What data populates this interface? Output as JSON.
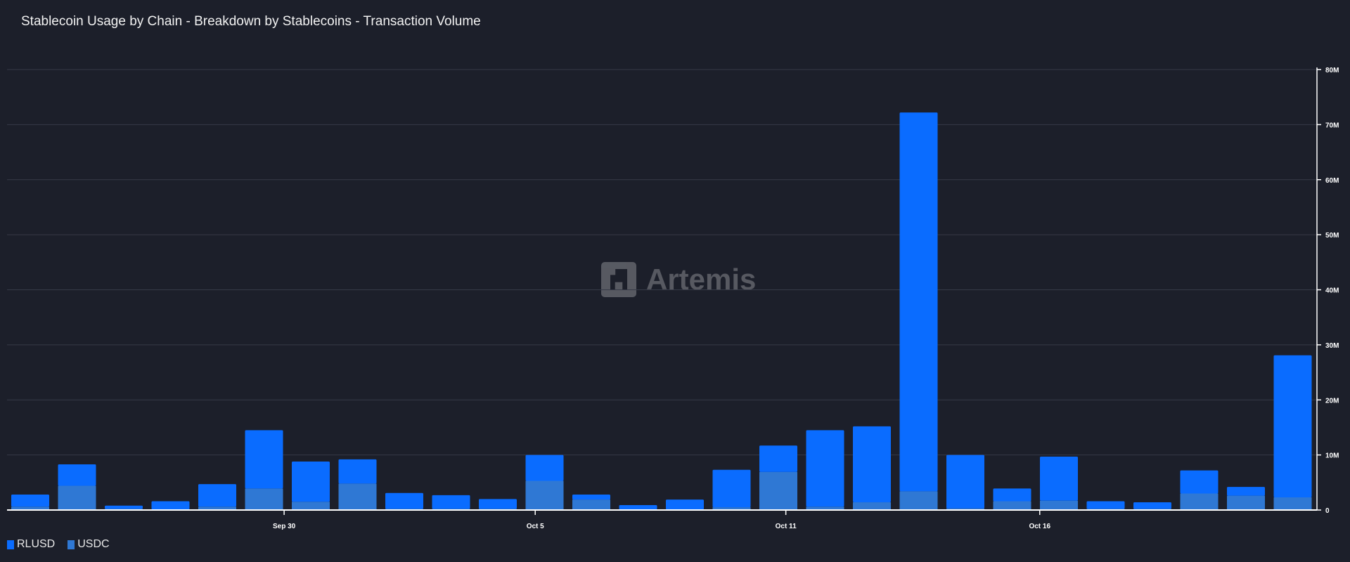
{
  "title": "Stablecoin Usage by Chain - Breakdown by Stablecoins - Transaction Volume",
  "watermark": "Artemis",
  "chart_data": {
    "type": "bar",
    "stacked": true,
    "title": "Stablecoin Usage by Chain - Breakdown by Stablecoins - Transaction Volume",
    "xlabel": "",
    "ylabel": "",
    "ylim": [
      0,
      80000000
    ],
    "yticks": [
      0,
      10000000,
      20000000,
      30000000,
      40000000,
      50000000,
      60000000,
      70000000,
      80000000
    ],
    "ytick_labels": [
      "0",
      "10M",
      "20M",
      "30M",
      "40M",
      "50M",
      "60M",
      "70M",
      "80M"
    ],
    "xticks": [
      {
        "label": "Sep 30",
        "at_bar": 5.43
      },
      {
        "label": "Oct 5",
        "at_bar": 10.8
      },
      {
        "label": "Oct 11",
        "at_bar": 16.16
      },
      {
        "label": "Oct 16",
        "at_bar": 21.59
      }
    ],
    "grid": true,
    "y_axis_side": "right",
    "legend": "bottom-left",
    "series": [
      {
        "name": "USDC",
        "color": "#2f78d4",
        "values": [
          0.6,
          4.4,
          0.2,
          0.1,
          0.6,
          3.9,
          1.5,
          4.8,
          0.2,
          0.2,
          0.2,
          5.3,
          1.9,
          0.1,
          0.1,
          0.5,
          6.9,
          0.6,
          1.4,
          3.4,
          0.3,
          1.6,
          1.7,
          0.2,
          0.2,
          3.0,
          2.6,
          2.3
        ]
      },
      {
        "name": "RLUSD",
        "color": "#0a6cff",
        "values": [
          2.2,
          3.9,
          0.6,
          1.5,
          4.1,
          10.6,
          7.3,
          4.4,
          2.9,
          2.5,
          1.8,
          4.7,
          0.9,
          0.8,
          1.8,
          6.8,
          4.8,
          13.9,
          13.8,
          68.8,
          9.7,
          2.3,
          8.0,
          1.4,
          1.2,
          4.2,
          1.6,
          25.8
        ]
      }
    ],
    "value_unit": "M"
  }
}
